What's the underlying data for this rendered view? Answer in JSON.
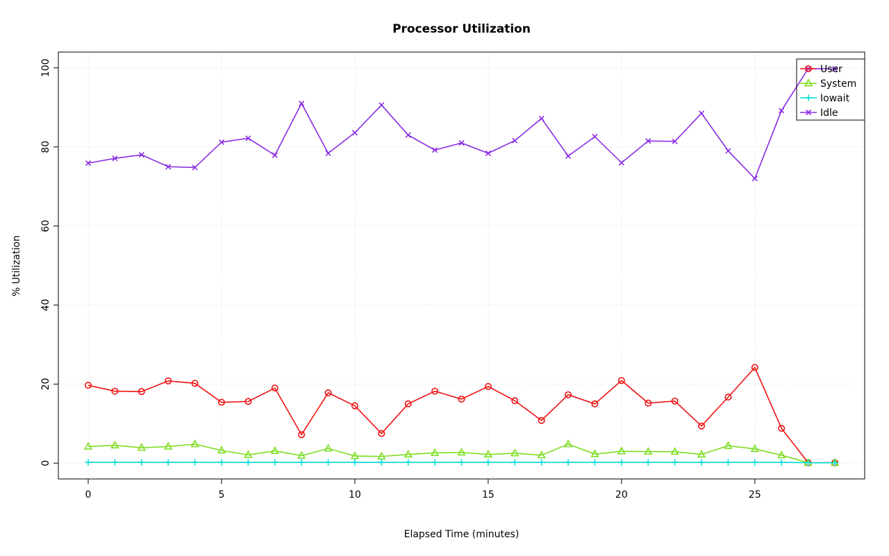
{
  "chart_data": {
    "type": "line",
    "title": "Processor Utilization",
    "xlabel": "Elapsed Time (minutes)",
    "ylabel": "% Utilization",
    "x": [
      0,
      1,
      2,
      3,
      4,
      5,
      6,
      7,
      8,
      9,
      10,
      11,
      12,
      13,
      14,
      15,
      16,
      17,
      18,
      19,
      20,
      21,
      22,
      23,
      24,
      25,
      26,
      27,
      28
    ],
    "series": [
      {
        "name": "User",
        "color": "#ee1111",
        "marker": "circle",
        "values": [
          19.7,
          18.2,
          18.1,
          20.8,
          20.2,
          15.4,
          15.6,
          19.0,
          7.2,
          17.8,
          14.5,
          7.5,
          15.0,
          18.2,
          16.2,
          19.4,
          15.8,
          10.8,
          17.3,
          15.0,
          20.9,
          15.2,
          15.7,
          9.4,
          16.7,
          24.2,
          8.8,
          0.1,
          0.1
        ]
      },
      {
        "name": "System",
        "color": "#7cdd22",
        "marker": "triangle",
        "values": [
          4.2,
          4.5,
          3.9,
          4.2,
          4.8,
          3.2,
          2.1,
          3.1,
          1.9,
          3.7,
          1.8,
          1.7,
          2.2,
          2.6,
          2.7,
          2.2,
          2.5,
          2.0,
          4.8,
          2.3,
          3.0,
          2.9,
          2.9,
          2.2,
          4.4,
          3.6,
          2.0,
          0.1,
          0.1
        ]
      },
      {
        "name": "Iowait",
        "color": "#00dcdc",
        "marker": "plus",
        "values": [
          0.2,
          0.2,
          0.2,
          0.2,
          0.2,
          0.2,
          0.2,
          0.2,
          0.2,
          0.2,
          0.2,
          0.2,
          0.2,
          0.2,
          0.2,
          0.2,
          0.2,
          0.2,
          0.2,
          0.2,
          0.2,
          0.2,
          0.2,
          0.2,
          0.2,
          0.2,
          0.2,
          0.1,
          0.1
        ]
      },
      {
        "name": "Idle",
        "color": "#8a2be2",
        "marker": "x",
        "values": [
          75.9,
          77.1,
          78.0,
          75.0,
          74.8,
          81.2,
          82.2,
          77.9,
          91.0,
          78.4,
          83.6,
          90.6,
          83.0,
          79.2,
          81.0,
          78.4,
          81.6,
          87.2,
          77.7,
          82.6,
          76.0,
          81.5,
          81.4,
          88.5,
          79.0,
          72.0,
          89.2,
          99.8,
          99.7
        ]
      }
    ],
    "xlim": [
      -1.12,
      29.12
    ],
    "ylim": [
      -4,
      104
    ],
    "xticks": [
      0,
      5,
      10,
      15,
      20,
      25
    ],
    "yticks": [
      0,
      20,
      40,
      60,
      80,
      100
    ],
    "grid": true,
    "legend_position": "top-right"
  }
}
